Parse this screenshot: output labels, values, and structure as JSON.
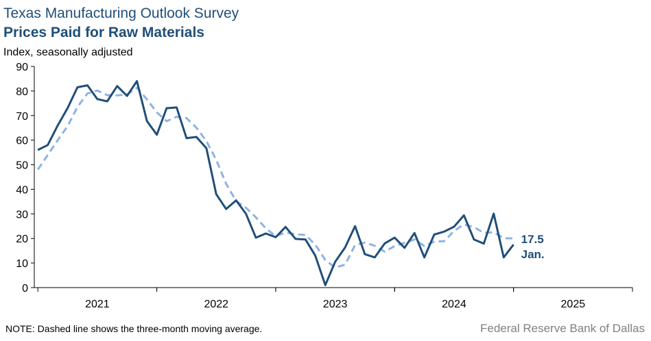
{
  "chart_data": {
    "type": "line",
    "title": "Texas Manufacturing Outlook Survey",
    "subtitle": "Prices Paid for Raw Materials",
    "y_label": "Index, seasonally adjusted",
    "note": "NOTE: Dashed line shows the three-month  moving average.",
    "source": "Federal Reserve Bank of Dallas",
    "annotation": "Jan.",
    "x": [
      2021.0,
      2021.083,
      2021.167,
      2021.25,
      2021.333,
      2021.417,
      2021.5,
      2021.583,
      2021.667,
      2021.75,
      2021.833,
      2021.917,
      2022.0,
      2022.083,
      2022.167,
      2022.25,
      2022.333,
      2022.417,
      2022.5,
      2022.583,
      2022.667,
      2022.75,
      2022.833,
      2022.917,
      2023.0,
      2023.083,
      2023.167,
      2023.25,
      2023.333,
      2023.417,
      2023.5,
      2023.583,
      2023.667,
      2023.75,
      2023.833,
      2023.917,
      2024.0,
      2024.083,
      2024.167,
      2024.25,
      2024.333,
      2024.417,
      2024.5,
      2024.583,
      2024.667,
      2024.75,
      2024.833,
      2024.917,
      2025.0
    ],
    "xlim": [
      2020.97,
      2026
    ],
    "xticks": [
      {
        "value": 2021.5,
        "label": "2021"
      },
      {
        "value": 2022.5,
        "label": "2022"
      },
      {
        "value": 2023.5,
        "label": "2023"
      },
      {
        "value": 2024.5,
        "label": "2024"
      },
      {
        "value": 2025.5,
        "label": "2025"
      }
    ],
    "ylim": [
      0,
      90
    ],
    "yticks": [
      0,
      10,
      20,
      30,
      40,
      50,
      60,
      70,
      80,
      90
    ],
    "series": [
      {
        "name": "Prices paid",
        "color": "#1f4e79",
        "dashed": false,
        "values": [
          56,
          58,
          66,
          73,
          81.5,
          82.3,
          76.7,
          75.8,
          82,
          78,
          84,
          67.8,
          62.2,
          73,
          73.3,
          60.8,
          61.3,
          56.7,
          38,
          32,
          35.5,
          30,
          20.3,
          22,
          20.5,
          24.7,
          19.8,
          19.6,
          13,
          1,
          10.5,
          16.3,
          25,
          13.6,
          12.3,
          18,
          20.3,
          16.2,
          22.2,
          12.3,
          21.6,
          22.8,
          24.8,
          29.4,
          19.6,
          17.9,
          30.1,
          12.3,
          17.5
        ]
      },
      {
        "name": "Three-month moving average",
        "color": "#8db3e2",
        "dashed": true,
        "values": [
          48,
          54,
          60,
          65.7,
          73.5,
          79,
          80.2,
          78.3,
          78.2,
          78.6,
          81.3,
          76.6,
          71.3,
          67.7,
          69.5,
          69,
          65.1,
          59.6,
          52,
          42.3,
          35.2,
          32.5,
          28.6,
          24.1,
          20.9,
          22.4,
          21.7,
          21.4,
          17.5,
          11.2,
          8.2,
          9.3,
          17.3,
          18.3,
          17,
          14.6,
          16.9,
          18.2,
          19.6,
          16.9,
          18.7,
          18.9,
          23.1,
          25.7,
          24.6,
          22.3,
          22.5,
          20.1,
          20
        ]
      }
    ]
  }
}
